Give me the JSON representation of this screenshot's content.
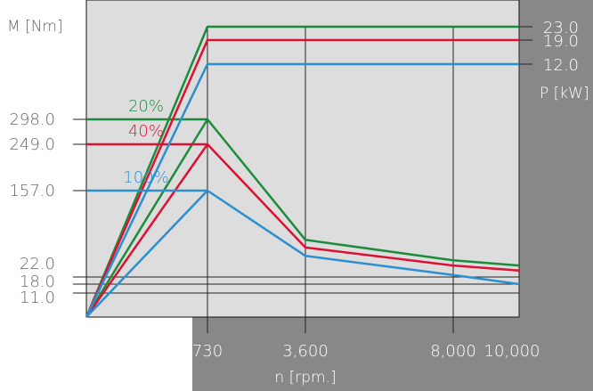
{
  "chart_data": {
    "type": "line",
    "left_axis_label": "M [Nm]",
    "right_axis_label": "P [kW]",
    "xlabel": "n [rpm.]",
    "x_ticks": [
      "730",
      "3,600",
      "8,000",
      "10,000"
    ],
    "x_tick_values": [
      730,
      3600,
      8000,
      10000
    ],
    "left_ticks": [
      "298.0",
      "249.0",
      "157.0",
      "22.0",
      "18.0",
      "11.0"
    ],
    "left_tick_values": [
      298,
      249,
      157,
      22,
      18,
      11
    ],
    "right_ticks": [
      "23.0",
      "19.0",
      "12.0"
    ],
    "right_tick_values": [
      23,
      19,
      12
    ],
    "series": [
      {
        "name": "20%",
        "color": "#1a8c3c",
        "torque": [
          [
            0,
            0
          ],
          [
            730,
            298
          ],
          [
            3600,
            80
          ],
          [
            8000,
            48
          ],
          [
            10000,
            40
          ]
        ],
        "power": [
          [
            0,
            0
          ],
          [
            730,
            23
          ],
          [
            10000,
            23
          ]
        ]
      },
      {
        "name": "40%",
        "color": "#dd1133",
        "torque": [
          [
            0,
            0
          ],
          [
            730,
            249
          ],
          [
            3600,
            68
          ],
          [
            8000,
            40
          ],
          [
            10000,
            32
          ]
        ],
        "power": [
          [
            0,
            0
          ],
          [
            730,
            19
          ],
          [
            10000,
            19
          ]
        ]
      },
      {
        "name": "100%",
        "color": "#2b8fd0",
        "torque": [
          [
            0,
            0
          ],
          [
            730,
            157
          ],
          [
            3600,
            55
          ],
          [
            8000,
            25
          ],
          [
            10000,
            18
          ]
        ],
        "power": [
          [
            0,
            0
          ],
          [
            730,
            12
          ],
          [
            10000,
            12
          ]
        ]
      }
    ],
    "torque_reference_lines": [
      22,
      18,
      11
    ],
    "grid": "vertical lines at x ticks"
  }
}
